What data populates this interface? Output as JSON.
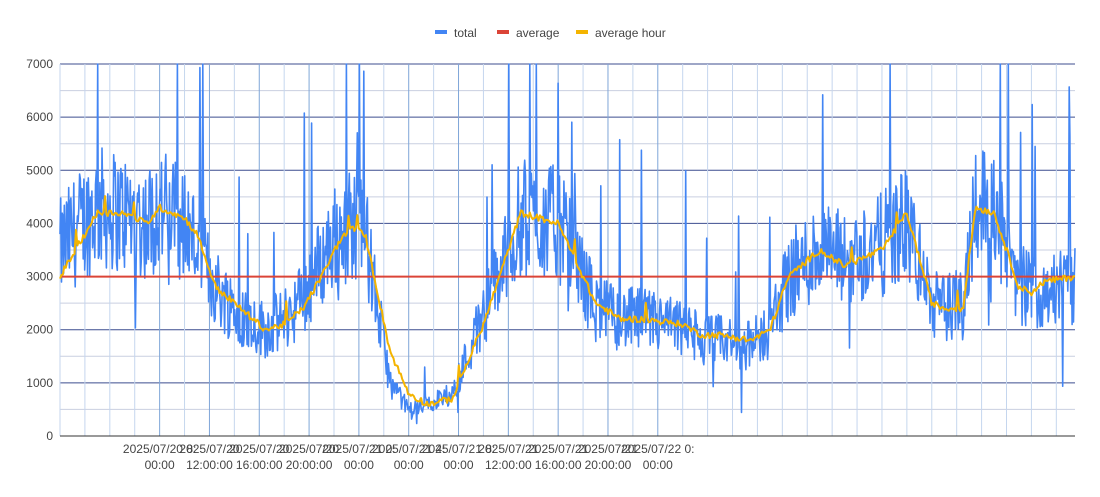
{
  "chart_data": {
    "type": "line",
    "title": "",
    "xlabel": "",
    "ylabel": "",
    "ylim": [
      0,
      7000
    ],
    "yticks": [
      0,
      1000,
      2000,
      3000,
      4000,
      5000,
      6000,
      7000
    ],
    "grid": true,
    "legend_position": "top",
    "x_range_hours": [
      0,
      81.5
    ],
    "x_ticks": [
      {
        "hour": 8,
        "line1": "2025/07/20 8:",
        "line2": "00:00"
      },
      {
        "hour": 12,
        "line1": "2025/07/20",
        "line2": "12:00:00"
      },
      {
        "hour": 16,
        "line1": "2025/07/20",
        "line2": "16:00:00"
      },
      {
        "hour": 20,
        "line1": "2025/07/20",
        "line2": "20:00:00"
      },
      {
        "hour": 24,
        "line1": "2025/07/21 0:",
        "line2": "00:00"
      },
      {
        "hour": 28,
        "line1": "2025/07/21 4:",
        "line2": "00:00"
      },
      {
        "hour": 32,
        "line1": "2025/07/21 8:",
        "line2": "00:00"
      },
      {
        "hour": 36,
        "line1": "2025/07/21",
        "line2": "12:00:00"
      },
      {
        "hour": 40,
        "line1": "2025/07/21",
        "line2": "16:00:00"
      },
      {
        "hour": 44,
        "line1": "2025/07/21",
        "line2": "20:00:00"
      },
      {
        "hour": 48,
        "line1": "2025/07/22 0:",
        "line2": "00:00"
      }
    ],
    "series": [
      {
        "name": "total",
        "color": "#4285f4",
        "style": "noisy-line",
        "envelope_hours": [
          0.0,
          1.0,
          3.0,
          5.0,
          7.0,
          8.0,
          10.0,
          11.0,
          12.5,
          14.0,
          15.0,
          16.5,
          18.0,
          19.5,
          21.0,
          22.5,
          23.5,
          24.5,
          26.5,
          28.0,
          29.5,
          31.5,
          34.0,
          37.0,
          40.0,
          42.0,
          43.0,
          45.0,
          46.5,
          48.5,
          50.0,
          51.5,
          53.0,
          55.5,
          57.0,
          58.5,
          61.0,
          63.0,
          66.0,
          68.0,
          70.0,
          71.0,
          72.5,
          73.5,
          75.0,
          77.0,
          78.0,
          79.0,
          81.5
        ],
        "envelope_values": [
          3500,
          3800,
          4300,
          4200,
          4000,
          4300,
          4000,
          3600,
          2800,
          2400,
          2200,
          2000,
          2200,
          2600,
          3300,
          3900,
          4000,
          3800,
          1000,
          500,
          600,
          800,
          2300,
          4100,
          4000,
          3000,
          2400,
          2200,
          2200,
          2100,
          2000,
          1800,
          1800,
          1700,
          2000,
          3000,
          3500,
          3300,
          3600,
          4000,
          2500,
          2400,
          2500,
          4500,
          4200,
          2900,
          2700,
          2800,
          2800
        ]
      },
      {
        "name": "average",
        "color": "#db4437",
        "style": "flat-line",
        "value": 3000
      },
      {
        "name": "average hour",
        "color": "#f4b400",
        "style": "step-line",
        "hours": [
          0.0,
          1.0,
          3.0,
          5.0,
          7.0,
          8.0,
          10.0,
          11.0,
          12.5,
          14.0,
          15.0,
          16.5,
          18.0,
          19.5,
          21.0,
          22.5,
          23.5,
          24.5,
          26.5,
          28.0,
          29.5,
          31.5,
          34.0,
          37.0,
          40.0,
          42.0,
          43.0,
          45.0,
          46.5,
          48.5,
          50.0,
          51.5,
          53.0,
          55.5,
          57.0,
          58.5,
          61.0,
          63.0,
          66.0,
          68.0,
          70.0,
          71.0,
          72.5,
          73.5,
          75.0,
          77.0,
          78.0,
          79.0,
          81.5
        ],
        "values": [
          3000,
          3400,
          4200,
          4200,
          4000,
          4300,
          4100,
          3800,
          2800,
          2500,
          2300,
          2000,
          2100,
          2400,
          3000,
          3700,
          3900,
          3800,
          1600,
          800,
          600,
          700,
          2100,
          4200,
          4000,
          3000,
          2500,
          2200,
          2200,
          2150,
          2100,
          1900,
          1900,
          1800,
          2000,
          3000,
          3500,
          3200,
          3500,
          4200,
          2500,
          2400,
          2400,
          4300,
          4200,
          2800,
          2700,
          2900,
          3000
        ]
      }
    ]
  }
}
